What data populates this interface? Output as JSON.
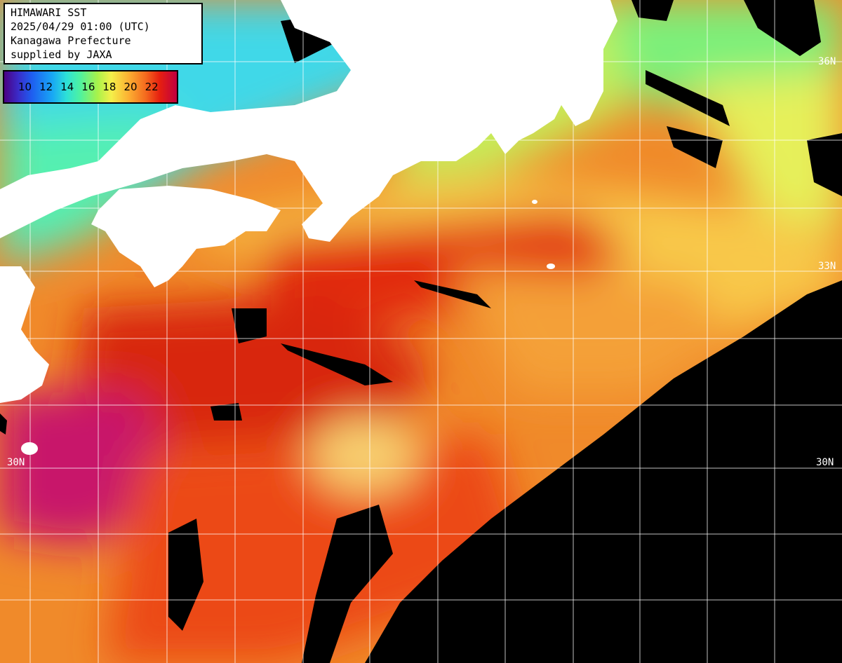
{
  "info": {
    "title": "HIMAWARI SST",
    "datetime": "2025/04/29 01:00 (UTC)",
    "region": "Kanagawa Prefecture",
    "credit": "supplied by JAXA"
  },
  "colorbar": {
    "ticks": [
      "10",
      "12",
      "14",
      "16",
      "18",
      "20",
      "22"
    ]
  },
  "latitude_labels": {
    "lat_33_right": "33N",
    "lat_36_right": "36N",
    "lat_30_left": "30N",
    "lat_30_right": "30N"
  },
  "colors": {
    "land": "#ffffff",
    "no_data": "#000000",
    "grid": "#ffffff"
  }
}
